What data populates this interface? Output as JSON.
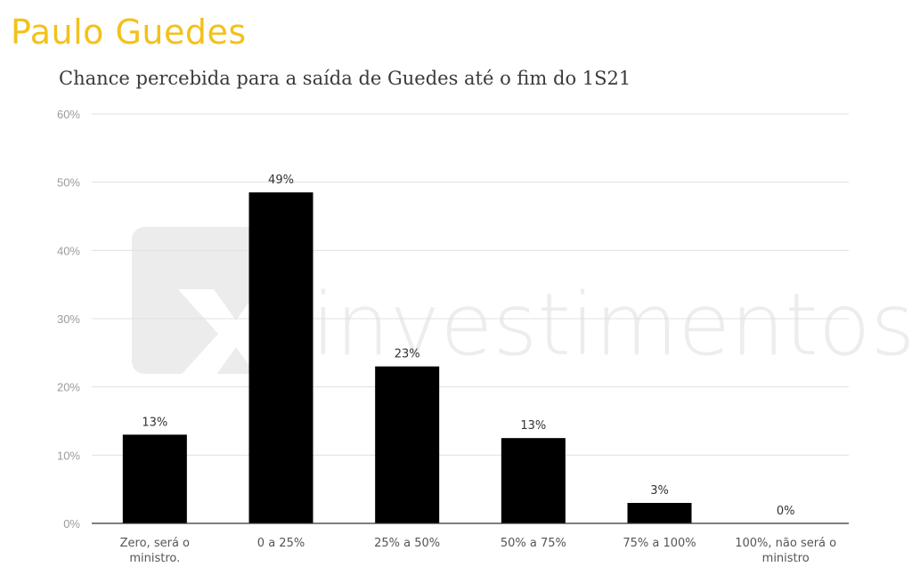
{
  "header": {
    "title": "Paulo Guedes"
  },
  "watermark": {
    "brand_text": "investimentos"
  },
  "colors": {
    "header": "#f3c11b",
    "bar": "#000000",
    "grid": "#e0e0e0",
    "axis": "#333333"
  },
  "chart_data": {
    "type": "bar",
    "title": "Chance percebida para a saída de Guedes até o fim do 1S21",
    "categories": [
      [
        "Zero, será o",
        "ministro."
      ],
      [
        "0 a 25%"
      ],
      [
        "25% a 50%"
      ],
      [
        "50% a 75%"
      ],
      [
        "75% a 100%"
      ],
      [
        "100%, não será o",
        "ministro"
      ]
    ],
    "values": [
      13,
      48.5,
      23,
      12.5,
      3,
      0
    ],
    "data_labels": [
      "13%",
      "49%",
      "23%",
      "13%",
      "3%",
      "0%"
    ],
    "ylim": [
      0,
      60
    ],
    "yticks": [
      "0%",
      "10%",
      "20%",
      "30%",
      "40%",
      "50%",
      "60%"
    ],
    "grid": true,
    "legend": "none"
  }
}
